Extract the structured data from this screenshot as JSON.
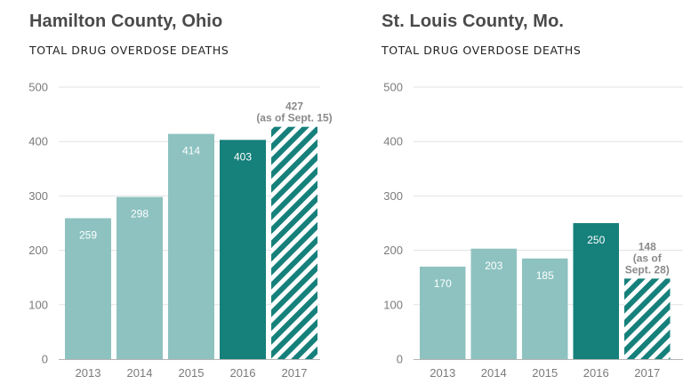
{
  "colors": {
    "light_bar": "#8dc2c0",
    "dark_bar": "#16807b",
    "hatch": "#16807b",
    "grid": "#e2e2e2",
    "axis": "#b5b5b5"
  },
  "chart_data": [
    {
      "type": "bar",
      "title": "Hamilton County, Ohio",
      "subtitle": "TOTAL DRUG OVERDOSE DEATHS",
      "categories": [
        "2013",
        "2014",
        "2015",
        "2016",
        "2017"
      ],
      "values": [
        259,
        298,
        414,
        403,
        427
      ],
      "value_labels": [
        "259",
        "298",
        "414",
        "403",
        ""
      ],
      "bar_styles": [
        "light",
        "light",
        "light",
        "dark",
        "hatched"
      ],
      "annotation": {
        "index": 4,
        "lines": [
          "427",
          "(as of Sept. 15)"
        ]
      },
      "ylim": [
        0,
        500
      ],
      "yticks": [
        0,
        100,
        200,
        300,
        400,
        500
      ],
      "ytick_labels": [
        "0",
        "100",
        "200",
        "300",
        "400",
        "500"
      ],
      "grid": true
    },
    {
      "type": "bar",
      "title": "St. Louis County, Mo.",
      "subtitle": "TOTAL DRUG OVERDOSE DEATHS",
      "categories": [
        "2013",
        "2014",
        "2015",
        "2016",
        "2017"
      ],
      "values": [
        170,
        203,
        185,
        250,
        148
      ],
      "value_labels": [
        "170",
        "203",
        "185",
        "250",
        ""
      ],
      "bar_styles": [
        "light",
        "light",
        "light",
        "dark",
        "hatched"
      ],
      "annotation": {
        "index": 4,
        "lines": [
          "148",
          "(as of",
          "Sept. 28)"
        ]
      },
      "ylim": [
        0,
        500
      ],
      "yticks": [
        0,
        100,
        200,
        300,
        400,
        500
      ],
      "ytick_labels": [
        "0",
        "100",
        "200",
        "300",
        "400",
        "500"
      ],
      "grid": true
    }
  ]
}
